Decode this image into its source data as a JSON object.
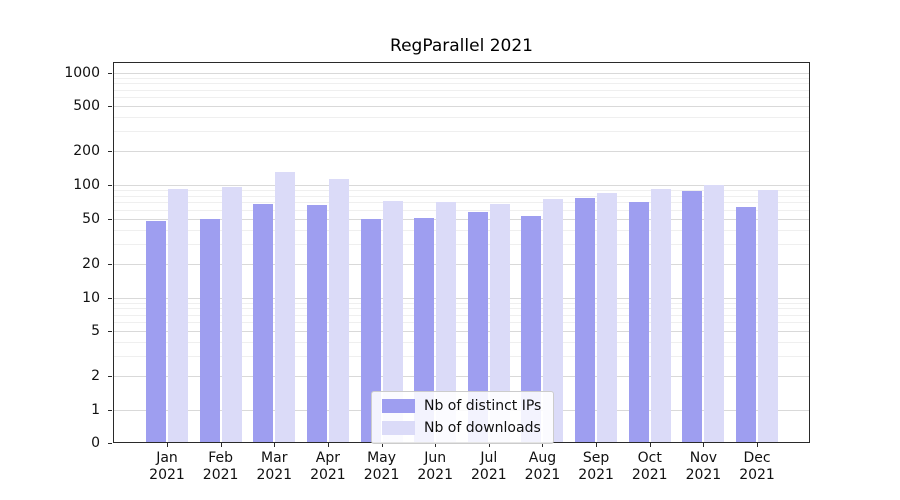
{
  "chart_data": {
    "type": "bar",
    "title": "RegParallel 2021",
    "categories": [
      "Jan 2021",
      "Feb 2021",
      "Mar 2021",
      "Apr 2021",
      "May 2021",
      "Jun 2021",
      "Jul 2021",
      "Aug 2021",
      "Sep 2021",
      "Oct 2021",
      "Nov 2021",
      "Dec 2021"
    ],
    "series": [
      {
        "name": "Nb of distinct IPs",
        "color": "#9e9ef0",
        "values": [
          48,
          50,
          68,
          66,
          50,
          51,
          58,
          53,
          77,
          70,
          88,
          64
        ]
      },
      {
        "name": "Nb of downloads",
        "color": "#dbdbf8",
        "values": [
          92,
          96,
          130,
          112,
          72,
          70,
          68,
          75,
          85,
          93,
          100,
          90
        ]
      }
    ],
    "xlabel": "",
    "ylabel": "",
    "yscale": "symlog",
    "yticks": [
      0,
      1,
      2,
      5,
      10,
      20,
      50,
      100,
      200,
      500,
      1000
    ],
    "ylim": [
      0,
      1250
    ],
    "grid": true,
    "legend": {
      "position": "lower center"
    }
  }
}
